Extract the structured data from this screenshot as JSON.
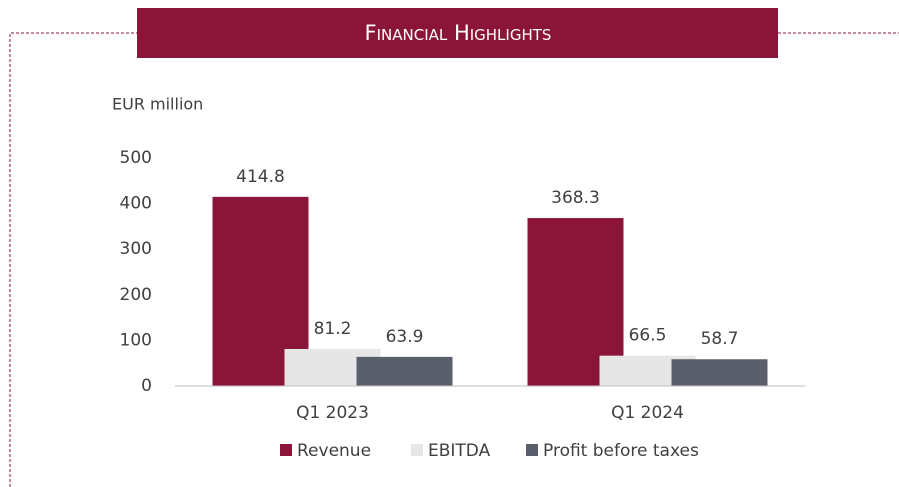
{
  "chart_data": {
    "type": "bar",
    "title": "Financial Highlights",
    "y_label": "EUR million",
    "categories": [
      "Q1 2023",
      "Q1 2024"
    ],
    "series": [
      {
        "name": "Revenue",
        "color": "#8b1538",
        "values": [
          414.8,
          368.3
        ]
      },
      {
        "name": "EBITDA",
        "color": "#e6e6e6",
        "values": [
          81.2,
          66.5
        ]
      },
      {
        "name": "Profit before taxes",
        "color": "#5b5f6b",
        "values": [
          63.9,
          58.7
        ]
      }
    ],
    "ylim": [
      0,
      500
    ],
    "yticks": [
      0,
      100,
      200,
      300,
      400,
      500
    ],
    "grid": false,
    "legend": "bottom"
  }
}
